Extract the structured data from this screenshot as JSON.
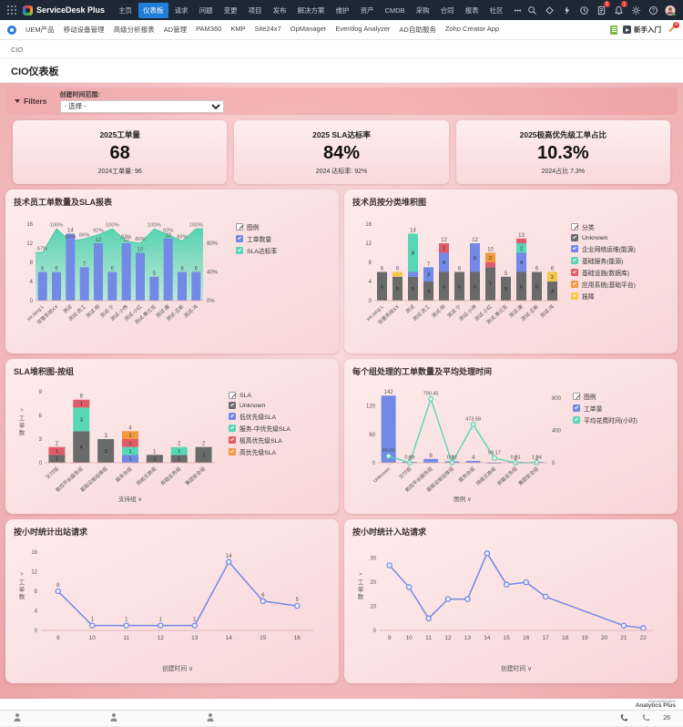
{
  "topnav": {
    "brand": "ServiceDesk Plus",
    "items": [
      {
        "label": "主页",
        "active": false
      },
      {
        "label": "仪表板",
        "active": true
      },
      {
        "label": "请求",
        "active": false
      },
      {
        "label": "问题",
        "active": false
      },
      {
        "label": "变更",
        "active": false
      },
      {
        "label": "项目",
        "active": false
      },
      {
        "label": "发布",
        "active": false
      },
      {
        "label": "解决方案",
        "active": false
      },
      {
        "label": "维护",
        "active": false
      },
      {
        "label": "资产",
        "active": false
      },
      {
        "label": "CMDB",
        "active": false
      },
      {
        "label": "采购",
        "active": false
      },
      {
        "label": "合同",
        "active": false
      },
      {
        "label": "报表",
        "active": false
      },
      {
        "label": "社区",
        "active": false
      },
      {
        "label": "•••",
        "active": false
      }
    ],
    "icons": [
      {
        "name": "search-icon"
      },
      {
        "name": "zia-icon"
      },
      {
        "name": "lightning-icon"
      },
      {
        "name": "history-icon"
      },
      {
        "name": "approvals-icon",
        "badge": "1"
      },
      {
        "name": "notifications-icon",
        "badge": "1"
      },
      {
        "name": "settings-icon"
      },
      {
        "name": "help-icon"
      },
      {
        "name": "user-avatar"
      }
    ]
  },
  "toolbar": {
    "items": [
      "UEM产品",
      "移动设备管理",
      "高级分析报表",
      "AD管理",
      "PAM360",
      "KMP",
      "Site24x7",
      "OpManager",
      "Eventlog Analyzer",
      "AD自助服务",
      "Zoho Creator App"
    ],
    "getting_started": "新手入门",
    "pencil_badge": "4"
  },
  "breadcrumb": {
    "text": "CIO"
  },
  "page": {
    "title": "CIO仪表板"
  },
  "filters": {
    "label": "Filters",
    "field_label": "创建时间范围:",
    "select_value": "- 选择 -"
  },
  "kpis": [
    {
      "title": "2025工单量",
      "value": "68",
      "subtitle": "2024工单量: 96"
    },
    {
      "title": "2025 SLA达标率",
      "value": "84%",
      "subtitle": "2024 达标率: 92%"
    },
    {
      "title": "2025极高优先级工单占比",
      "value": "10.3%",
      "subtitle": "2024占比 7.3%"
    }
  ],
  "colors": {
    "bar_blue": "#7289e6",
    "teal": "#57d7b5",
    "gray": "#696a6a",
    "red": "#e05c6b",
    "orange": "#f0993f",
    "yellow": "#f3c84b",
    "nav_active": "#1f7ed6"
  },
  "chart_data": [
    {
      "id": "tech_sla",
      "type": "bar",
      "title": "技术员工单数量及SLA报表",
      "legend_title": "图例",
      "categories": [
        "xie,tang L",
        "信管系统XX",
        "测试",
        "测试-员工",
        "测试-明",
        "测试-宁",
        "测试-小伟",
        "测试-小红",
        "测试-弗兰克",
        "测试-康",
        "测试-王新",
        "测试-鸿"
      ],
      "series": [
        {
          "name": "工单数量",
          "type": "bar",
          "color": "#7289e6",
          "values": [
            6,
            6,
            14,
            7,
            12,
            6,
            12,
            10,
            5,
            13,
            6,
            6
          ]
        },
        {
          "name": "SLA达标率",
          "type": "area",
          "color": "#57d7b5",
          "values": [
            67,
            100,
            83,
            86,
            92,
            100,
            83,
            80,
            100,
            92,
            83,
            100
          ],
          "unit": "%"
        }
      ],
      "ylim": [
        0,
        16
      ],
      "yticks": [
        0,
        4,
        8,
        12,
        16
      ],
      "y2ticks": [
        "0%",
        "40%",
        "80%"
      ],
      "y2lim": [
        0,
        106.7
      ]
    },
    {
      "id": "tech_category",
      "type": "stacked-bar",
      "title": "技术员按分类堆积图",
      "legend_title": "分类",
      "categories": [
        "xie,tang L",
        "信管系统XX",
        "测试",
        "测试-员工",
        "测试-明",
        "测试-宁",
        "测试-小伟",
        "测试-小红",
        "测试-弗兰克",
        "测试-康",
        "测试-王新",
        "测试-鸿"
      ],
      "series": [
        {
          "name": "Unknown",
          "color": "#696a6a",
          "values": [
            6,
            5,
            5,
            4,
            6,
            6,
            6,
            7,
            5,
            6,
            6,
            4
          ]
        },
        {
          "name": "企业网络运维(能源)",
          "color": "#7289e6",
          "values": [
            0,
            0,
            1,
            3,
            4,
            0,
            6,
            0,
            0,
            4,
            0,
            0
          ]
        },
        {
          "name": "基础服务(能源)",
          "color": "#57d7b5",
          "values": [
            0,
            0,
            8,
            0,
            0,
            0,
            0,
            0,
            0,
            2,
            0,
            0
          ]
        },
        {
          "name": "基础设施(数据库)",
          "color": "#e05c6b",
          "values": [
            0,
            0,
            0,
            0,
            2,
            0,
            0,
            1,
            0,
            1,
            0,
            0
          ]
        },
        {
          "name": "应用系统(基础平台)",
          "color": "#f0993f",
          "values": [
            0,
            0,
            0,
            0,
            0,
            0,
            0,
            2,
            0,
            0,
            0,
            0
          ]
        },
        {
          "name": "报障",
          "color": "#f3c84b",
          "values": [
            0,
            1,
            0,
            0,
            0,
            0,
            0,
            0,
            0,
            0,
            0,
            2
          ]
        }
      ],
      "totals": [
        6,
        6,
        14,
        7,
        12,
        6,
        12,
        10,
        5,
        13,
        6,
        6
      ],
      "ylim": [
        0,
        16
      ],
      "yticks": [
        0,
        4,
        8,
        12,
        16
      ]
    },
    {
      "id": "sla_group",
      "type": "stacked-bar",
      "title": "SLA堆积图-按组",
      "legend_title": "SLA",
      "categories": [
        "交付组",
        "数控平台服务组",
        "基础设施运维组",
        "服务台组",
        "网络交换组",
        "邮箱业务组",
        "集团安全组"
      ],
      "series": [
        {
          "name": "Unknown",
          "color": "#696a6a",
          "values": [
            1,
            4,
            3,
            0,
            1,
            1,
            2
          ]
        },
        {
          "name": "低优先级SLA",
          "color": "#7289e6",
          "values": [
            0,
            0,
            0,
            1,
            0,
            0,
            0
          ]
        },
        {
          "name": "服务-中优先级SLA",
          "color": "#57d7b5",
          "values": [
            0,
            3,
            0,
            1,
            0,
            1,
            0
          ]
        },
        {
          "name": "极高优先级SLA",
          "color": "#e05c6b",
          "values": [
            1,
            1,
            0,
            1,
            0,
            0,
            0
          ]
        },
        {
          "name": "高优先级SLA",
          "color": "#f0993f",
          "values": [
            0,
            0,
            0,
            1,
            0,
            0,
            0
          ]
        }
      ],
      "totals": [
        2,
        8,
        3,
        4,
        1,
        2,
        2
      ],
      "ylim": [
        0,
        9
      ],
      "yticks": [
        0,
        3,
        6,
        9
      ],
      "xlabel": "支持组 ∨",
      "ylabel": "工单数"
    },
    {
      "id": "group_time",
      "type": "bar-line",
      "title": "每个组处理的工单数量及平均处理时间",
      "legend_title": "图例",
      "categories": [
        "Unknown",
        "交付组",
        "数控平台服务组",
        "基础设施运维组",
        "服务台组",
        "网络交换组",
        "邮箱业务组",
        "集团安全组"
      ],
      "series": [
        {
          "name": "工单量",
          "type": "bar",
          "color": "#7289e6",
          "values": [
            142,
            2,
            8,
            3,
            4,
            1,
            2,
            2
          ]
        },
        {
          "name": "平均花费时间(小时)",
          "type": "line",
          "color": "#57d7b5",
          "values": [
            84.0,
            0.08,
            790.45,
            0.02,
            473.58,
            59.17,
            0.01,
            1.04
          ],
          "labels": [
            "84.00",
            "0.08",
            "790.45",
            "0.02",
            "473.58",
            "59.17",
            "0.01",
            "1.04"
          ]
        }
      ],
      "ylim": [
        0,
        150
      ],
      "yticks": [
        0,
        60,
        120
      ],
      "y2lim": [
        0,
        880
      ],
      "y2ticks": [
        0,
        400,
        800
      ],
      "xlabel": "图例 ∨"
    },
    {
      "id": "outbound",
      "type": "line",
      "title": "按小时统计出站请求",
      "x": [
        9,
        10,
        11,
        12,
        13,
        14,
        15,
        16
      ],
      "values": [
        8,
        1,
        1,
        1,
        1,
        14,
        6,
        5
      ],
      "ylim": [
        0,
        16
      ],
      "yticks": [
        0,
        4,
        8,
        12,
        16
      ],
      "xlabel": "创建时间 ∨",
      "ylabel": "工单数",
      "color": "#7289e6",
      "point_labels": true
    },
    {
      "id": "inbound",
      "type": "line",
      "title": "按小时统计入站请求",
      "x": [
        9,
        10,
        11,
        12,
        13,
        14,
        15,
        16,
        17,
        18,
        19,
        20,
        21,
        22
      ],
      "values": [
        27,
        18,
        5,
        13,
        13,
        32,
        19,
        20,
        14,
        null,
        null,
        null,
        2,
        1
      ],
      "ylim": [
        0,
        32.5
      ],
      "yticks": [
        0,
        10,
        20,
        30
      ],
      "xlabel": "创建时间 ∨",
      "ylabel": "工单数",
      "color": "#7289e6",
      "point_labels": false
    }
  ],
  "footer": {
    "watermark_line1": "ManageEngine",
    "watermark_line2": "Analytics Plus",
    "dock_right_label": "26"
  }
}
